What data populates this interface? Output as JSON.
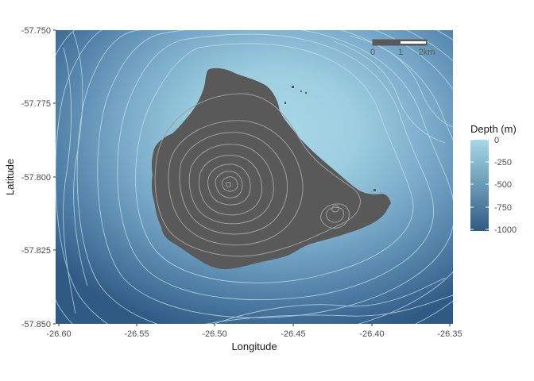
{
  "map": {
    "x_axis_label": "Longitude",
    "y_axis_label": "Latitude",
    "x_ticks": [
      "-26.60",
      "-26.55",
      "-26.50",
      "-26.45",
      "-26.40",
      "-26.35"
    ],
    "y_ticks": [
      "-57.750",
      "-57.775",
      "-57.800",
      "-57.825",
      "-57.850"
    ],
    "legend": {
      "title": "Depth (m)",
      "labels": [
        "0",
        "-250",
        "-500",
        "-750",
        "-1000"
      ],
      "gradient_top_color": "#a6d8e7",
      "gradient_bottom_color": "#2f5a83"
    },
    "scale_bar": {
      "labels": [
        "0",
        "1",
        "2km"
      ]
    },
    "colors": {
      "land": "#595959",
      "deep_water": "#2f5a83",
      "shallow_water": "#a6d8e7",
      "contour_water": "#c9e3ee",
      "contour_land": "#9e9e9e"
    }
  },
  "chart_data": {
    "type": "heatmap",
    "title": "",
    "xlabel": "Longitude",
    "ylabel": "Latitude",
    "xlim": [
      -26.6,
      -26.35
    ],
    "ylim": [
      -57.85,
      -57.75
    ],
    "fill_variable": "Depth (m)",
    "fill_range": [
      -1000,
      0
    ],
    "legend_position": "right",
    "grid": false,
    "scale_bar_km": [
      0,
      1,
      2
    ]
  }
}
